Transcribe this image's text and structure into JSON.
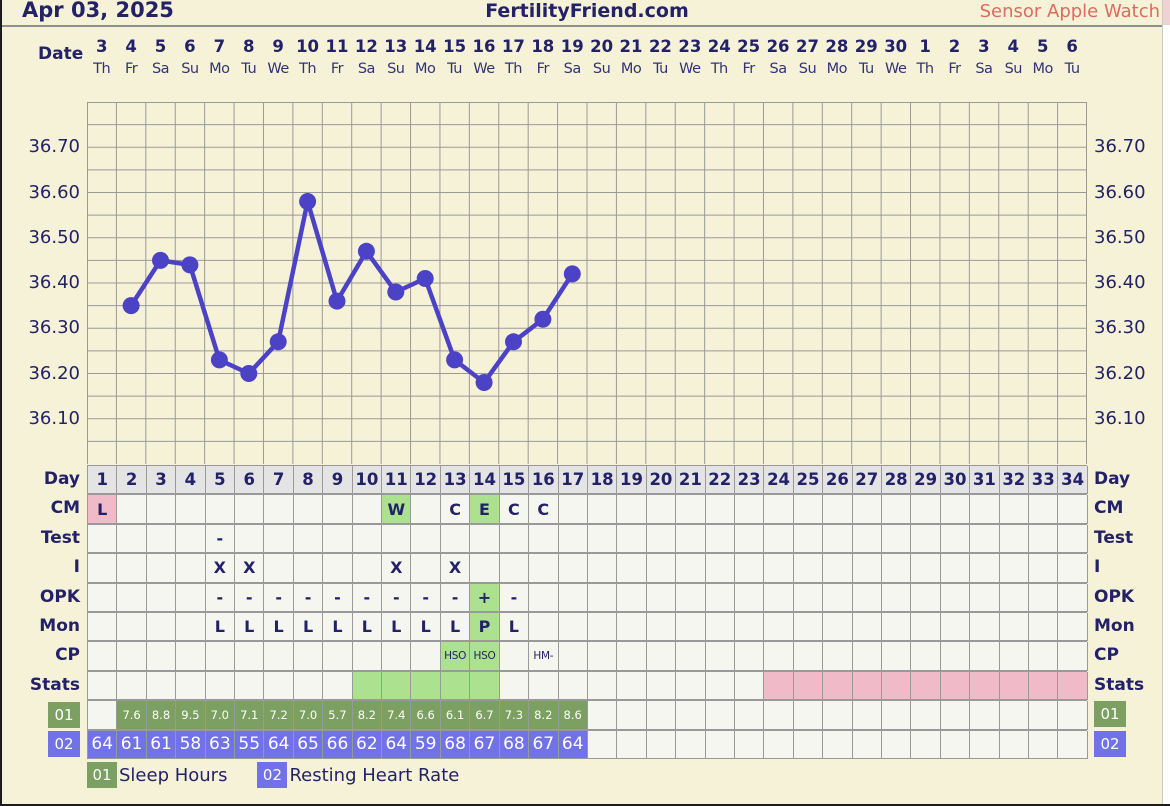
{
  "header": {
    "date_label": "Apr 03, 2025",
    "site": "FertilityFriend.com",
    "sensor": "Sensor Apple Watch"
  },
  "calendar": {
    "label": "Date",
    "dates": [
      3,
      4,
      5,
      6,
      7,
      8,
      9,
      10,
      11,
      12,
      13,
      14,
      15,
      16,
      17,
      18,
      19,
      20,
      21,
      22,
      23,
      24,
      25,
      26,
      27,
      28,
      29,
      30,
      1,
      2,
      3,
      4,
      5,
      6
    ],
    "weekdays": [
      "Th",
      "Fr",
      "Sa",
      "Su",
      "Mo",
      "Tu",
      "We",
      "Th",
      "Fr",
      "Sa",
      "Su",
      "Mo",
      "Tu",
      "We",
      "Th",
      "Fr",
      "Sa",
      "Su",
      "Mo",
      "Tu",
      "We",
      "Th",
      "Fr",
      "Sa",
      "Su",
      "Mo",
      "Tu",
      "We",
      "Th",
      "Fr",
      "Sa",
      "Su",
      "Mo",
      "Tu"
    ]
  },
  "chart_data": {
    "type": "line",
    "title": "Basal Body Temperature",
    "unit": "C",
    "ylim": [
      36.0,
      36.8
    ],
    "grid_step": 0.05,
    "y_tick_labels": [
      "36.70",
      "36.60",
      "36.50",
      "36.40",
      "36.30",
      "36.20",
      "36.10"
    ],
    "x_total_days": 34,
    "series": [
      {
        "name": "Temperature",
        "x_days": [
          2,
          3,
          4,
          5,
          6,
          7,
          8,
          9,
          10,
          11,
          12,
          13,
          14,
          15,
          16,
          17
        ],
        "values": [
          36.35,
          36.45,
          36.44,
          36.23,
          36.2,
          36.27,
          36.58,
          36.36,
          36.47,
          36.38,
          36.41,
          36.23,
          36.18,
          36.27,
          36.32,
          36.42
        ]
      }
    ]
  },
  "table": {
    "day_numbers": [
      1,
      2,
      3,
      4,
      5,
      6,
      7,
      8,
      9,
      10,
      11,
      12,
      13,
      14,
      15,
      16,
      17,
      18,
      19,
      20,
      21,
      22,
      23,
      24,
      25,
      26,
      27,
      28,
      29,
      30,
      31,
      32,
      33,
      34
    ],
    "rows": [
      {
        "key": "day",
        "label": "Day",
        "type": "day-header"
      },
      {
        "key": "cm",
        "label": "CM",
        "type": "sparse",
        "cells": {
          "1": {
            "t": "L",
            "bg": "pink"
          },
          "11": {
            "t": "W",
            "bg": "green"
          },
          "13": {
            "t": "C"
          },
          "14": {
            "t": "E",
            "bg": "green"
          },
          "15": {
            "t": "C"
          },
          "16": {
            "t": "C"
          }
        }
      },
      {
        "key": "test",
        "label": "Test",
        "type": "sparse",
        "cells": {
          "5": {
            "t": "-"
          }
        }
      },
      {
        "key": "i",
        "label": "I",
        "type": "sparse",
        "cells": {
          "5": {
            "t": "X"
          },
          "6": {
            "t": "X"
          },
          "11": {
            "t": "X"
          },
          "13": {
            "t": "X"
          }
        }
      },
      {
        "key": "opk",
        "label": "OPK",
        "type": "sparse",
        "cells": {
          "5": {
            "t": "-"
          },
          "6": {
            "t": "-"
          },
          "7": {
            "t": "-"
          },
          "8": {
            "t": "-"
          },
          "9": {
            "t": "-"
          },
          "10": {
            "t": "-"
          },
          "11": {
            "t": "-"
          },
          "12": {
            "t": "-"
          },
          "13": {
            "t": "-"
          },
          "14": {
            "t": "+",
            "bg": "green"
          },
          "15": {
            "t": "-"
          }
        }
      },
      {
        "key": "mon",
        "label": "Mon",
        "type": "sparse",
        "cells": {
          "5": {
            "t": "L"
          },
          "6": {
            "t": "L"
          },
          "7": {
            "t": "L"
          },
          "8": {
            "t": "L"
          },
          "9": {
            "t": "L"
          },
          "10": {
            "t": "L"
          },
          "11": {
            "t": "L"
          },
          "12": {
            "t": "L"
          },
          "13": {
            "t": "L"
          },
          "14": {
            "t": "P",
            "bg": "green"
          },
          "15": {
            "t": "L"
          }
        }
      },
      {
        "key": "cp",
        "label": "CP",
        "type": "sparse",
        "small": true,
        "cells": {
          "13": {
            "t": "HSO",
            "bg": "green"
          },
          "14": {
            "t": "HSO",
            "bg": "green"
          },
          "16": {
            "t": "HM-"
          }
        }
      },
      {
        "key": "stats",
        "label": "Stats",
        "type": "stats",
        "green_days": [
          10,
          11,
          12,
          13,
          14
        ],
        "pink_days": [
          24,
          25,
          26,
          27,
          28,
          29,
          30,
          31,
          32,
          33,
          34
        ]
      },
      {
        "key": "sleep",
        "label": "01",
        "type": "values",
        "badge": "green",
        "start_day": 2,
        "values": [
          "7.6",
          "8.8",
          "9.5",
          "7.0",
          "7.1",
          "7.2",
          "7.0",
          "5.7",
          "8.2",
          "7.4",
          "6.6",
          "6.1",
          "6.7",
          "7.3",
          "8.2",
          "8.6"
        ]
      },
      {
        "key": "hr",
        "label": "02",
        "type": "values",
        "badge": "blue",
        "start_day": 1,
        "values": [
          "64",
          "61",
          "61",
          "58",
          "63",
          "55",
          "64",
          "65",
          "66",
          "62",
          "64",
          "59",
          "68",
          "67",
          "68",
          "67",
          "64"
        ]
      }
    ]
  },
  "legend": [
    {
      "code": "01",
      "label": "Sleep Hours",
      "color": "green"
    },
    {
      "code": "02",
      "label": "Resting Heart Rate",
      "color": "blue"
    }
  ],
  "colors": {
    "background": "#f6f2d8",
    "cell": "#f6f6f1",
    "grid": "#999999",
    "day_header_bg": "#e4e4e4",
    "navy": "#232168",
    "line": "#4b42c6",
    "highlight_green": "#ace18f",
    "highlight_pink": "#f0bac8",
    "sleep_green": "#7c9f62",
    "hr_blue": "#7172e8",
    "sensor_red": "#de6a61"
  }
}
